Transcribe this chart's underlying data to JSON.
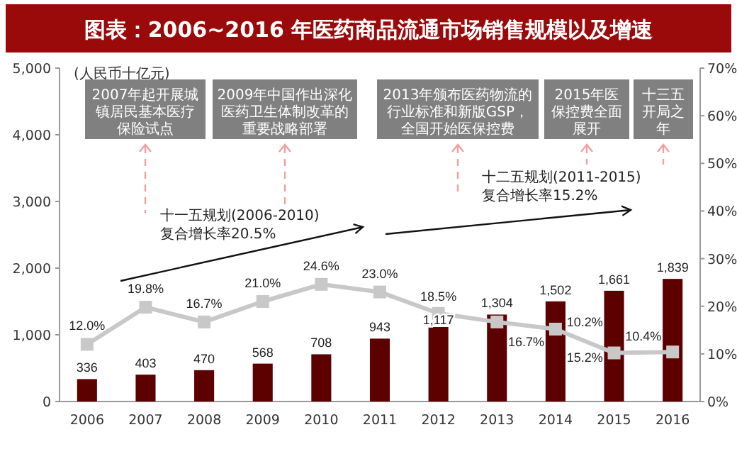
{
  "chart_data": {
    "type": "bar",
    "title": "图表：2006~2016 年医药商品流通市场销售规模以及增速",
    "ylabel": "(人民币十亿元)",
    "categories": [
      "2006",
      "2007",
      "2008",
      "2009",
      "2010",
      "2011",
      "2012",
      "2013",
      "2014",
      "2015",
      "2016"
    ],
    "series": [
      {
        "color": "#5c0000",
        "values": [
          336,
          403,
          470,
          568,
          708,
          943,
          1117,
          1304,
          1502,
          1661,
          1839
        ],
        "value_labels": [
          "336",
          "403",
          "470",
          "568",
          "708",
          "943",
          "1,117",
          "1,304",
          "1,502",
          "1,661",
          "1,839"
        ]
      },
      {
        "type": "line",
        "axis": "y2",
        "color": "#c8c8c8",
        "marker": "square",
        "values": [
          12.0,
          19.8,
          16.7,
          21.0,
          24.6,
          23.0,
          18.5,
          16.7,
          15.2,
          10.2,
          10.4
        ],
        "value_labels": [
          "12.0%",
          "19.8%",
          "16.7%",
          "21.0%",
          "24.6%",
          "23.0%",
          "18.5%",
          "16.7%",
          "15.2%",
          "10.2%",
          "10.4%"
        ]
      }
    ],
    "ylim": [
      0,
      5000
    ],
    "yticks": [
      {
        "value": 0,
        "label": "0"
      },
      {
        "value": 1000,
        "label": "1,000"
      },
      {
        "value": 2000,
        "label": "2,000"
      },
      {
        "value": 3000,
        "label": "3,000"
      },
      {
        "value": 4000,
        "label": "4,000"
      },
      {
        "value": 5000,
        "label": "5,000"
      }
    ],
    "y2lim": [
      0,
      70
    ],
    "y2ticks": [
      {
        "value": 0,
        "label": "0%"
      },
      {
        "value": 10,
        "label": "10%"
      },
      {
        "value": 20,
        "label": "20%"
      },
      {
        "value": 30,
        "label": "30%"
      },
      {
        "value": 40,
        "label": "40%"
      },
      {
        "value": 50,
        "label": "50%"
      },
      {
        "value": 60,
        "label": "60%"
      },
      {
        "value": 70,
        "label": "70%"
      }
    ],
    "grid": false,
    "annotations": [
      "2007年起开展城镇居民基本医疗保险试点",
      "2009年中国作出深化医药卫生体制改革的重要战略部署",
      "2013年颁布医药物流的行业标准和新版GSP，全国开始医保控费",
      "2015年医保控费全面展开",
      "十三五开局之年",
      "十一五规划(2006-2010)\n复合增长率20.5%",
      "十二五规划(2011-2015)\n复合增长率15.2%"
    ]
  }
}
